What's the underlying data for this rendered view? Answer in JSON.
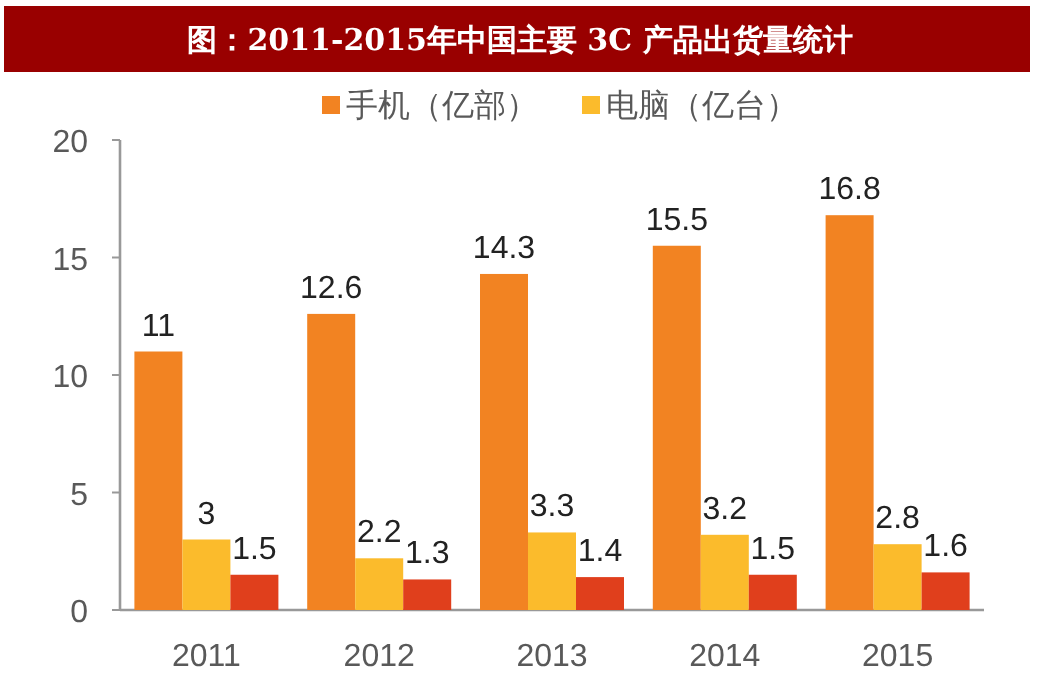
{
  "chart_data": {
    "type": "bar",
    "title": "图：2011-2015年中国主要 3C 产品出货量统计",
    "categories": [
      "2011",
      "2012",
      "2013",
      "2014",
      "2015"
    ],
    "series": [
      {
        "name": "手机（亿部）",
        "color": "#f28322",
        "values": [
          11,
          12.6,
          14.3,
          15.5,
          16.8
        ]
      },
      {
        "name": "电脑（亿台）",
        "color": "#fbbb2c",
        "values": [
          3,
          2.2,
          3.3,
          3.2,
          2.8
        ]
      },
      {
        "color": "#e03f1c",
        "values": [
          1.5,
          1.3,
          1.4,
          1.5,
          1.6
        ]
      }
    ],
    "ylim": [
      0,
      20
    ],
    "yticks": [
      0,
      5,
      10,
      15,
      20
    ],
    "data_labels": true,
    "legend": "top",
    "grid": false
  }
}
